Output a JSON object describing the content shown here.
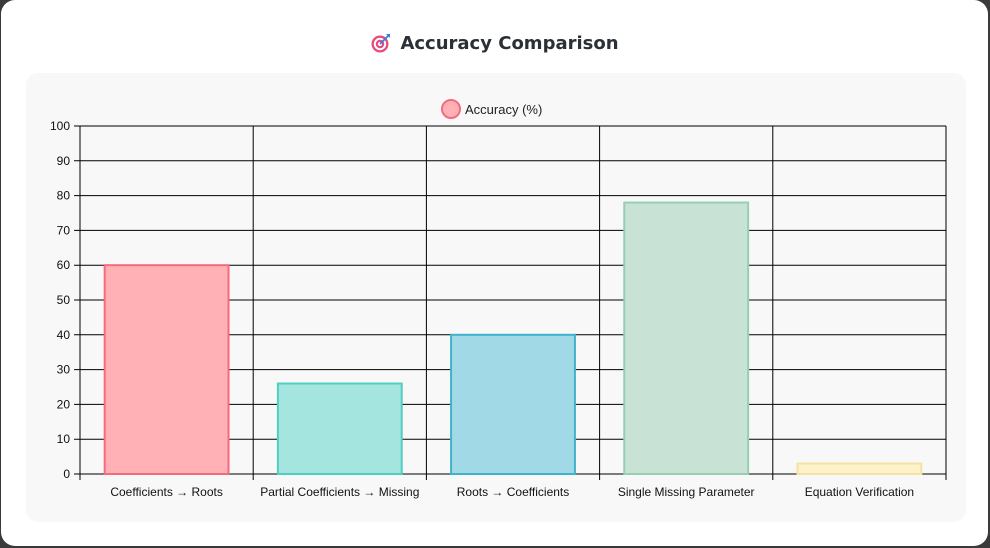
{
  "header": {
    "title": "Accuracy Comparison",
    "icon": "target-icon"
  },
  "chart_data": {
    "type": "bar",
    "categories": [
      "Coefficients → Roots",
      "Partial Coefficients → Missing",
      "Roots → Coefficients",
      "Single Missing Parameter",
      "Equation Verification"
    ],
    "series": [
      {
        "name": "Accuracy (%)",
        "values": [
          60,
          26,
          40,
          78,
          3
        ]
      }
    ],
    "colors": {
      "fill": [
        "#ffb1b6",
        "#a5e5df",
        "#a2d9e6",
        "#c8e3d6",
        "#fdf2c9"
      ],
      "border": [
        "#f46b7e",
        "#4fcfc2",
        "#3fb3c9",
        "#96cfb2",
        "#f6e2a0"
      ],
      "legend_fill": "#ffb1b6",
      "legend_border": "#f46b7e"
    },
    "ylim": [
      0,
      100
    ],
    "yticks": [
      0,
      10,
      20,
      30,
      40,
      50,
      60,
      70,
      80,
      90,
      100
    ],
    "grid": true,
    "legend_position": "top-center"
  }
}
